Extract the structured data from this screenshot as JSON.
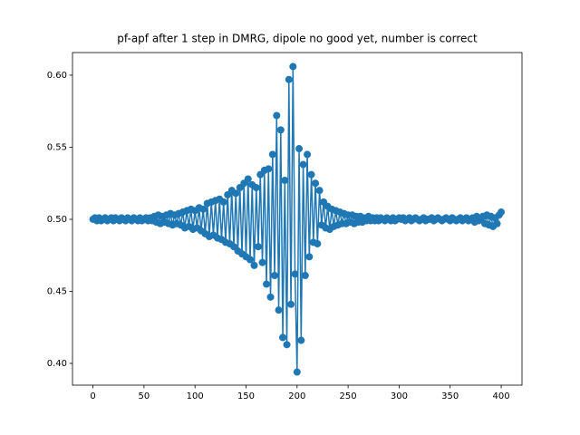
{
  "chart_data": {
    "type": "line",
    "title": "pf-apf after 1 step in DMRG, dipole no good yet, number is correct",
    "x": [
      0,
      2,
      4,
      6,
      8,
      10,
      12,
      14,
      16,
      18,
      20,
      22,
      24,
      26,
      28,
      30,
      32,
      34,
      36,
      38,
      40,
      42,
      44,
      46,
      48,
      50,
      52,
      54,
      56,
      58,
      60,
      62,
      64,
      66,
      68,
      70,
      72,
      74,
      76,
      78,
      80,
      82,
      84,
      86,
      88,
      90,
      92,
      94,
      96,
      98,
      100,
      102,
      104,
      106,
      108,
      110,
      112,
      114,
      116,
      118,
      120,
      122,
      124,
      126,
      128,
      130,
      132,
      134,
      136,
      138,
      140,
      142,
      144,
      146,
      148,
      150,
      152,
      154,
      156,
      158,
      160,
      162,
      164,
      166,
      168,
      170,
      172,
      174,
      176,
      178,
      180,
      182,
      184,
      186,
      188,
      190,
      192,
      194,
      196,
      198,
      200,
      202,
      204,
      206,
      208,
      210,
      212,
      214,
      216,
      218,
      220,
      222,
      224,
      226,
      228,
      230,
      232,
      234,
      236,
      238,
      240,
      242,
      244,
      246,
      248,
      250,
      252,
      254,
      256,
      258,
      260,
      262,
      264,
      266,
      268,
      270,
      272,
      274,
      276,
      278,
      280,
      282,
      284,
      286,
      288,
      290,
      292,
      294,
      296,
      298,
      300,
      302,
      304,
      306,
      308,
      310,
      312,
      314,
      316,
      318,
      320,
      322,
      324,
      326,
      328,
      330,
      332,
      334,
      336,
      338,
      340,
      342,
      344,
      346,
      348,
      350,
      352,
      354,
      356,
      358,
      360,
      362,
      364,
      366,
      368,
      370,
      372,
      374,
      376,
      378,
      380,
      382,
      384,
      386,
      388,
      390,
      392,
      394,
      396,
      398,
      400
    ],
    "series": [
      {
        "color": "#1f77b4",
        "values": [
          0.5,
          0.501,
          0.499,
          0.501,
          0.499,
          0.5,
          0.501,
          0.499,
          0.5,
          0.501,
          0.499,
          0.501,
          0.5,
          0.499,
          0.501,
          0.5,
          0.499,
          0.501,
          0.5,
          0.499,
          0.501,
          0.5,
          0.499,
          0.501,
          0.499,
          0.5,
          0.501,
          0.499,
          0.501,
          0.499,
          0.502,
          0.498,
          0.503,
          0.497,
          0.502,
          0.498,
          0.503,
          0.497,
          0.504,
          0.496,
          0.503,
          0.497,
          0.504,
          0.496,
          0.505,
          0.494,
          0.506,
          0.495,
          0.507,
          0.493,
          0.506,
          0.494,
          0.508,
          0.492,
          0.507,
          0.49,
          0.511,
          0.488,
          0.512,
          0.489,
          0.513,
          0.487,
          0.514,
          0.486,
          0.512,
          0.484,
          0.517,
          0.483,
          0.52,
          0.481,
          0.518,
          0.478,
          0.522,
          0.476,
          0.525,
          0.474,
          0.528,
          0.472,
          0.524,
          0.468,
          0.522,
          0.481,
          0.531,
          0.47,
          0.534,
          0.455,
          0.535,
          0.446,
          0.545,
          0.461,
          0.572,
          0.437,
          0.562,
          0.418,
          0.527,
          0.413,
          0.597,
          0.441,
          0.606,
          0.462,
          0.394,
          0.549,
          0.416,
          0.538,
          0.461,
          0.545,
          0.474,
          0.531,
          0.484,
          0.525,
          0.483,
          0.52,
          0.496,
          0.512,
          0.494,
          0.509,
          0.493,
          0.507,
          0.495,
          0.506,
          0.496,
          0.505,
          0.497,
          0.504,
          0.497,
          0.503,
          0.498,
          0.503,
          0.497,
          0.502,
          0.498,
          0.502,
          0.498,
          0.501,
          0.499,
          0.502,
          0.499,
          0.501,
          0.499,
          0.501,
          0.499,
          0.501,
          0.5,
          0.499,
          0.501,
          0.5,
          0.499,
          0.501,
          0.499,
          0.5,
          0.501,
          0.5,
          0.501,
          0.499,
          0.5,
          0.501,
          0.499,
          0.5,
          0.501,
          0.5,
          0.499,
          0.5,
          0.501,
          0.499,
          0.5,
          0.5,
          0.501,
          0.499,
          0.5,
          0.501,
          0.5,
          0.499,
          0.5,
          0.501,
          0.5,
          0.499,
          0.501,
          0.5,
          0.499,
          0.5,
          0.501,
          0.499,
          0.5,
          0.501,
          0.499,
          0.5,
          0.501,
          0.498,
          0.502,
          0.499,
          0.501,
          0.502,
          0.497,
          0.503,
          0.496,
          0.502,
          0.495,
          0.501,
          0.497,
          0.503,
          0.505
        ]
      }
    ],
    "xlim": [
      -20.05,
      420.4
    ],
    "ylim": [
      0.3849,
      0.6157
    ],
    "xticks": [
      0,
      50,
      100,
      150,
      200,
      250,
      300,
      350,
      400
    ],
    "yticks": [
      {
        "value": 0.4,
        "label": "0.40"
      },
      {
        "value": 0.45,
        "label": "0.45"
      },
      {
        "value": 0.5,
        "label": "0.50"
      },
      {
        "value": 0.55,
        "label": "0.55"
      },
      {
        "value": 0.6,
        "label": "0.60"
      }
    ]
  }
}
